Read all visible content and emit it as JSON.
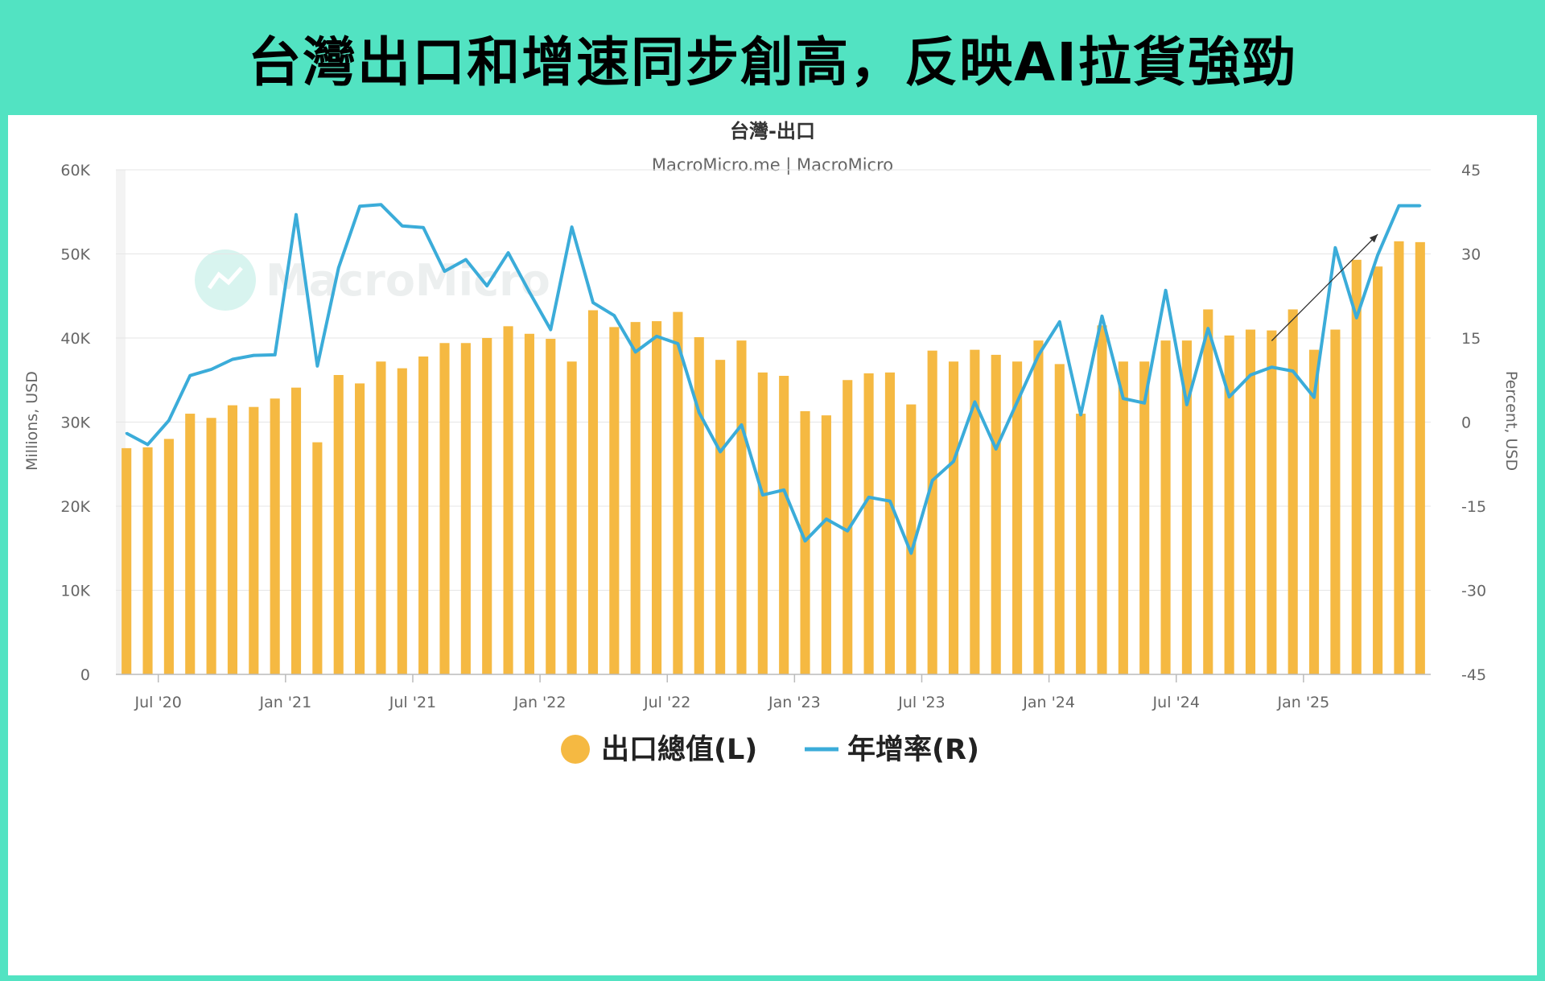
{
  "banner": {
    "headline": "台灣出口和增速同步創高，反映AI拉貨強勁"
  },
  "chart_data": {
    "type": "bar",
    "title": "台灣-出口",
    "subtitle": "MacroMicro.me | MacroMicro",
    "watermark": "MacroMicro",
    "ylabel_left": "Millions, USD",
    "ylabel_right": "Percent, USD",
    "ylim_left": [
      0,
      60000
    ],
    "ylim_right": [
      -45,
      45
    ],
    "yticks_left": [
      "0",
      "10K",
      "20K",
      "30K",
      "40K",
      "50K",
      "60K"
    ],
    "yticks_right": [
      "-45",
      "-30",
      "-15",
      "0",
      "15",
      "30",
      "45"
    ],
    "xticks": [
      "Jul '20",
      "Jan '21",
      "Jul '21",
      "Jan '22",
      "Jul '22",
      "Jan '23",
      "Jul '23",
      "Jan '24",
      "Jul '24",
      "Jan '25"
    ],
    "categories": [
      "2020-05",
      "2020-06",
      "2020-07",
      "2020-08",
      "2020-09",
      "2020-10",
      "2020-11",
      "2020-12",
      "2021-01",
      "2021-02",
      "2021-03",
      "2021-04",
      "2021-05",
      "2021-06",
      "2021-07",
      "2021-08",
      "2021-09",
      "2021-10",
      "2021-11",
      "2021-12",
      "2022-01",
      "2022-02",
      "2022-03",
      "2022-04",
      "2022-05",
      "2022-06",
      "2022-07",
      "2022-08",
      "2022-09",
      "2022-10",
      "2022-11",
      "2022-12",
      "2023-01",
      "2023-02",
      "2023-03",
      "2023-04",
      "2023-05",
      "2023-06",
      "2023-07",
      "2023-08",
      "2023-09",
      "2023-10",
      "2023-11",
      "2023-12",
      "2024-01",
      "2024-02",
      "2024-03",
      "2024-04",
      "2024-05",
      "2024-06",
      "2024-07",
      "2024-08",
      "2024-09",
      "2024-10",
      "2024-11",
      "2024-12",
      "2025-01",
      "2025-02",
      "2025-03",
      "2025-04",
      "2025-05",
      "2025-06"
    ],
    "series": [
      {
        "name": "出口總值(L)",
        "axis": "left",
        "color": "#f5b942",
        "values": [
          26900,
          27000,
          28000,
          31000,
          30500,
          32000,
          31800,
          32800,
          34100,
          27600,
          35600,
          34600,
          37200,
          36400,
          37800,
          39400,
          39400,
          40000,
          41400,
          40500,
          39900,
          37200,
          43300,
          41300,
          41900,
          42000,
          43100,
          40100,
          37400,
          39700,
          35900,
          35500,
          31300,
          30800,
          35000,
          35800,
          35900,
          32100,
          38500,
          37200,
          38600,
          38000,
          37200,
          39700,
          36900,
          31000,
          41500,
          37200,
          37200,
          39700,
          39700,
          43400,
          40300,
          41000,
          40900,
          43400,
          38600,
          41000,
          49300,
          48500,
          51500,
          51400
        ]
      },
      {
        "name": "年增率(R)",
        "axis": "right",
        "color": "#3bacd9",
        "values": [
          -2,
          -4,
          0.3,
          8.3,
          9.4,
          11.2,
          11.9,
          12,
          37,
          10,
          27.5,
          38.5,
          38.8,
          35,
          34.7,
          26.9,
          29,
          24.3,
          30.2,
          23.2,
          16.5,
          34.8,
          21.3,
          19,
          12.5,
          15.3,
          14,
          1.7,
          -5.3,
          -0.5,
          -13,
          -12.1,
          -21.2,
          -17.3,
          -19.4,
          -13.4,
          -14.1,
          -23.4,
          -10.4,
          -7,
          3.6,
          -4.8,
          3.6,
          11.9,
          17.9,
          1.3,
          18.9,
          4.2,
          3.4,
          23.5,
          3.1,
          16.7,
          4.5,
          8.4,
          9.8,
          9.1,
          4.4,
          31.1,
          18.6,
          29.8,
          38.6,
          38.6
        ]
      }
    ],
    "annotations": [
      "up-arrow"
    ],
    "legend": {
      "position": "bottom",
      "items": [
        "出口總值(L)",
        "年增率(R)"
      ]
    },
    "grid": true
  }
}
